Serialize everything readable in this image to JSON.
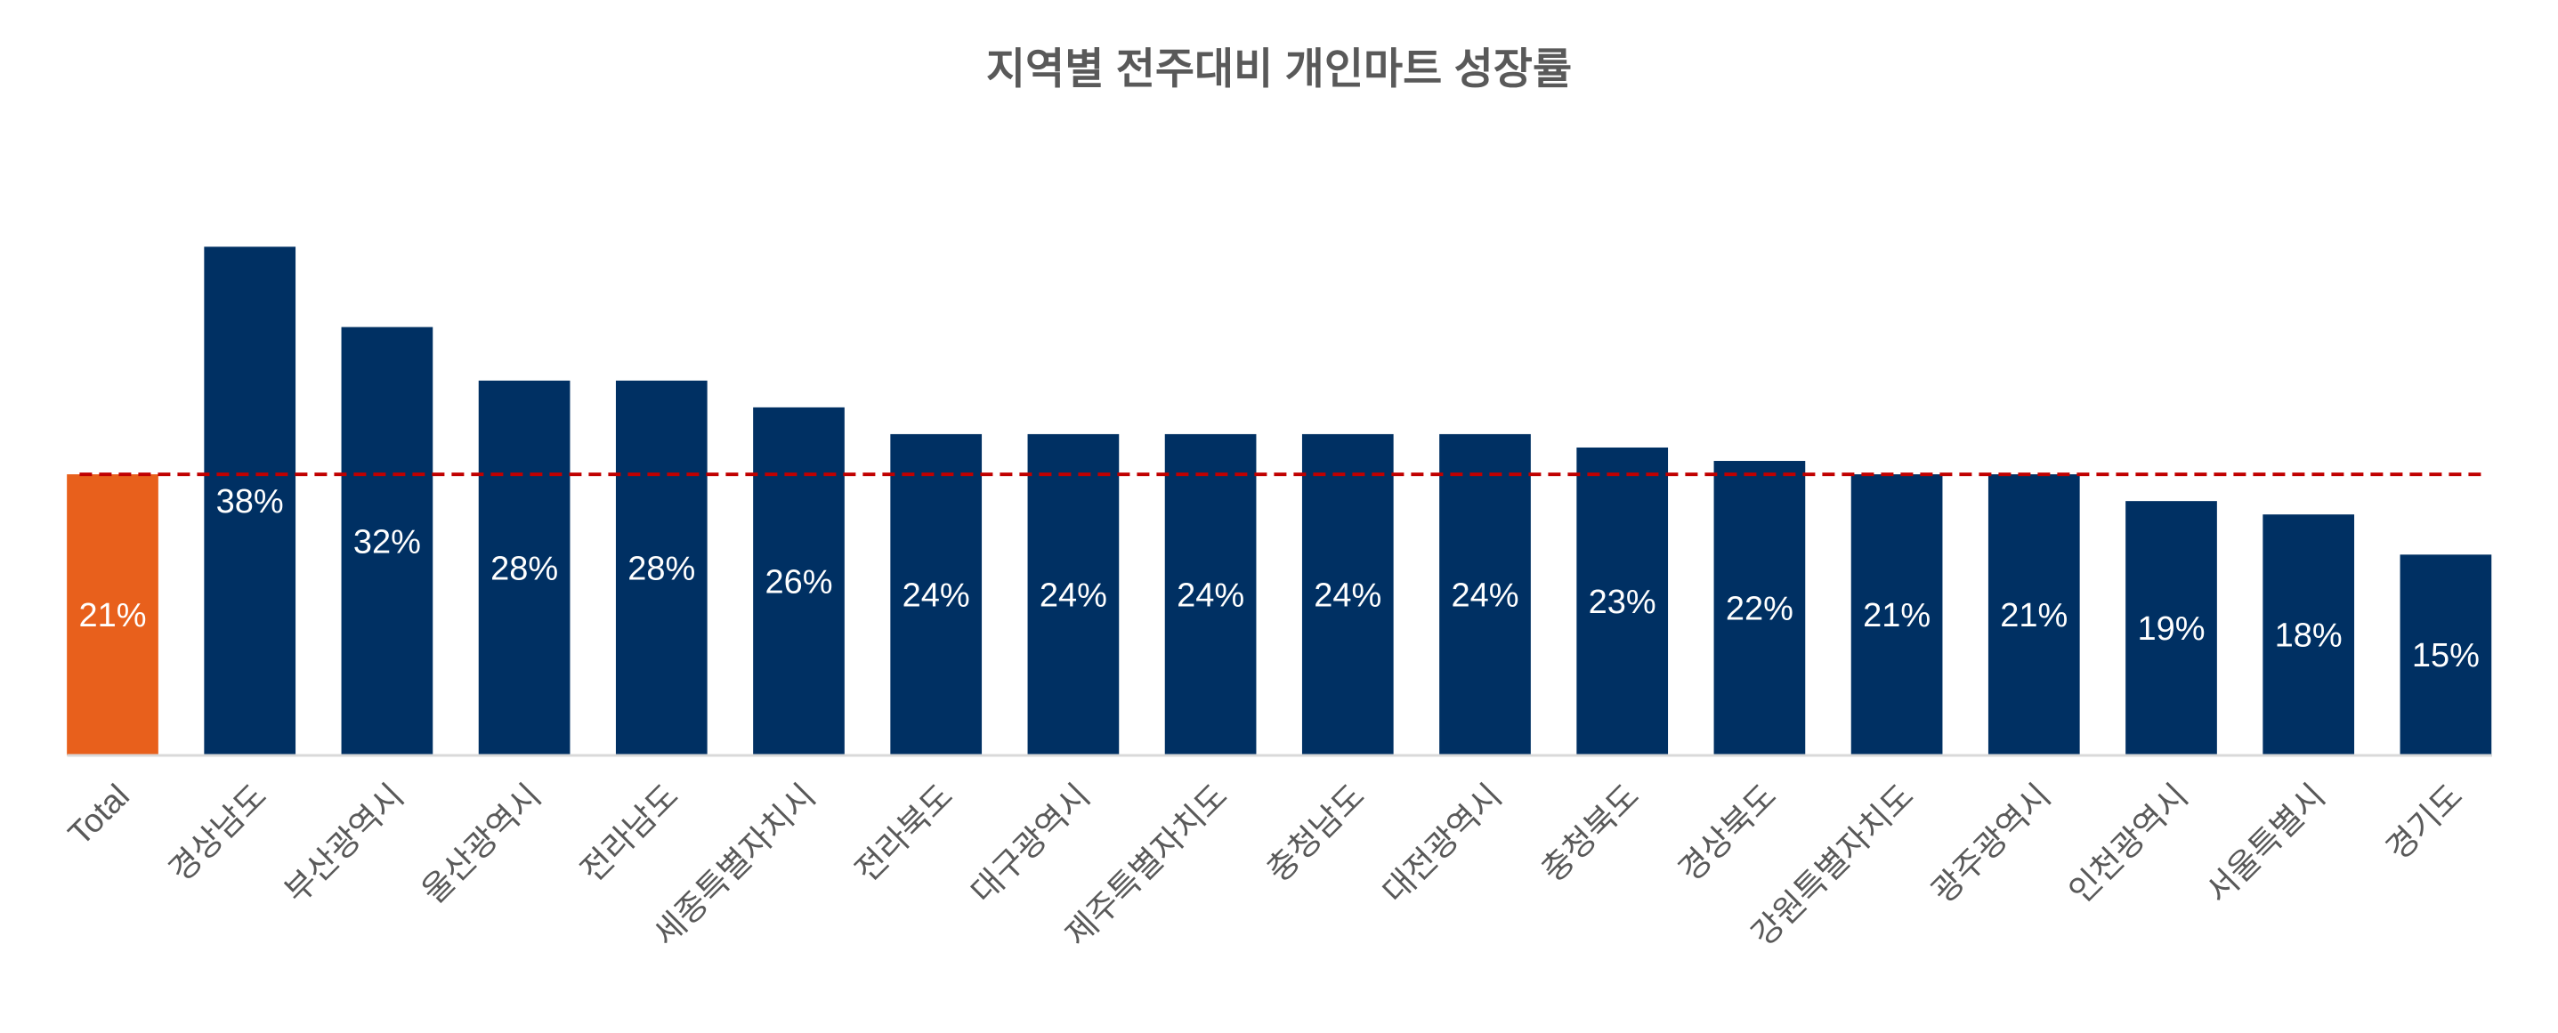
{
  "chart_data": {
    "type": "bar",
    "title": "지역별 전주대비 개인마트 성장률",
    "categories": [
      "Total",
      "경상남도",
      "부산광역시",
      "울산광역시",
      "전라남도",
      "세종특별자치시",
      "전라북도",
      "대구광역시",
      "제주특별자치도",
      "충청남도",
      "대전광역시",
      "충청북도",
      "경상북도",
      "강원특별자치도",
      "광주광역시",
      "인천광역시",
      "서울특별시",
      "경기도"
    ],
    "values": [
      21,
      38,
      32,
      28,
      28,
      26,
      24,
      24,
      24,
      24,
      24,
      23,
      22,
      21,
      21,
      19,
      18,
      15
    ],
    "value_labels": [
      "21%",
      "38%",
      "32%",
      "28%",
      "28%",
      "26%",
      "24%",
      "24%",
      "24%",
      "24%",
      "24%",
      "23%",
      "22%",
      "21%",
      "21%",
      "19%",
      "18%",
      "15%"
    ],
    "colors": [
      "#e8601c",
      "#003063",
      "#003063",
      "#003063",
      "#003063",
      "#003063",
      "#003063",
      "#003063",
      "#003063",
      "#003063",
      "#003063",
      "#003063",
      "#003063",
      "#003063",
      "#003063",
      "#003063",
      "#003063",
      "#003063"
    ],
    "ylim": [
      0,
      45
    ],
    "reference_line": {
      "value": 21,
      "color": "#c00000"
    }
  }
}
